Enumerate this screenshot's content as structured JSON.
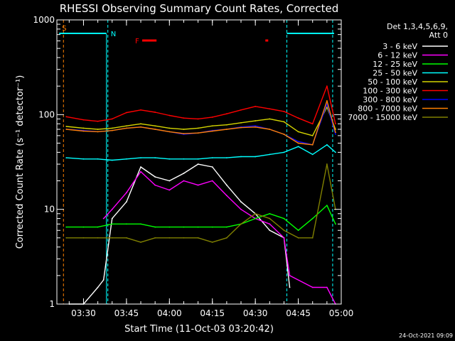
{
  "chart_data": {
    "type": "line",
    "title": "RHESSI Observing Summary Count Rates, Corrected",
    "xlabel": "Start Time (11-Oct-03 03:20:42)",
    "ylabel": "Corrected Count Rate (s⁻¹ detector⁻¹)",
    "y_scale": "log",
    "ylim": [
      1,
      1000
    ],
    "xlim": [
      "03:20:42",
      "05:00:00"
    ],
    "x_ticks": [
      "03:30",
      "03:45",
      "04:00",
      "04:15",
      "04:30",
      "04:45",
      "05:00"
    ],
    "y_ticks": [
      "1",
      "10",
      "100",
      "1000"
    ],
    "legend": {
      "placement": "right",
      "header": [
        "Det 1,3,4,5,6,9,",
        "Att 0"
      ]
    },
    "series": [
      {
        "name": "3 - 6 keV",
        "color": "#ffffff",
        "x": [
          "03:25",
          "03:30",
          "03:35",
          "03:37",
          "03:40",
          "03:45",
          "03:50",
          "03:55",
          "04:00",
          "04:05",
          "04:10",
          "04:15",
          "04:20",
          "04:25",
          "04:30",
          "04:35",
          "04:40",
          "04:42"
        ],
        "y": [
          1.0,
          1.0,
          1.5,
          1.8,
          8,
          12,
          28,
          22,
          20,
          24,
          30,
          28,
          18,
          12,
          9,
          6,
          5,
          1.5
        ]
      },
      {
        "name": "6 - 12 keV",
        "color": "#ff00ff",
        "x": [
          "03:37",
          "03:40",
          "03:45",
          "03:50",
          "03:55",
          "04:00",
          "04:05",
          "04:10",
          "04:15",
          "04:20",
          "04:25",
          "04:30",
          "04:35",
          "04:40",
          "04:42",
          "04:50",
          "04:55",
          "04:58"
        ],
        "y": [
          8,
          10,
          15,
          25,
          18,
          16,
          20,
          18,
          20,
          14,
          10,
          8,
          7,
          5,
          2,
          1.5,
          1.5,
          1
        ]
      },
      {
        "name": "12 - 25 keV",
        "color": "#00ff00",
        "x": [
          "03:24",
          "03:30",
          "03:35",
          "03:40",
          "03:45",
          "03:50",
          "03:55",
          "04:00",
          "04:05",
          "04:10",
          "04:15",
          "04:20",
          "04:25",
          "04:30",
          "04:35",
          "04:40",
          "04:45",
          "04:50",
          "04:55",
          "04:58"
        ],
        "y": [
          6.5,
          6.5,
          6.5,
          7,
          7,
          7,
          6.5,
          6.5,
          6.5,
          6.5,
          6.5,
          6.5,
          7,
          8,
          9,
          8,
          6,
          8,
          11,
          7
        ]
      },
      {
        "name": "25 - 50 keV",
        "color": "#00ffff",
        "x": [
          "03:24",
          "03:30",
          "03:35",
          "03:40",
          "03:45",
          "03:50",
          "03:55",
          "04:00",
          "04:05",
          "04:10",
          "04:15",
          "04:20",
          "04:25",
          "04:30",
          "04:35",
          "04:40",
          "04:45",
          "04:50",
          "04:55",
          "04:58"
        ],
        "y": [
          35,
          34,
          34,
          33,
          34,
          35,
          35,
          34,
          34,
          34,
          35,
          35,
          36,
          36,
          38,
          40,
          46,
          38,
          48,
          40
        ]
      },
      {
        "name": "50 - 100 keV",
        "color": "#d4d400",
        "x": [
          "03:24",
          "03:30",
          "03:35",
          "03:40",
          "03:45",
          "03:50",
          "03:55",
          "04:00",
          "04:05",
          "04:10",
          "04:15",
          "04:20",
          "04:25",
          "04:30",
          "04:35",
          "04:40",
          "04:45",
          "04:50",
          "04:55",
          "04:58"
        ],
        "y": [
          75,
          72,
          70,
          72,
          76,
          80,
          76,
          72,
          70,
          72,
          76,
          78,
          82,
          86,
          90,
          84,
          66,
          60,
          120,
          70
        ]
      },
      {
        "name": "100 - 300 keV",
        "color": "#ff0000",
        "x": [
          "03:24",
          "03:30",
          "03:35",
          "03:40",
          "03:45",
          "03:50",
          "03:55",
          "04:00",
          "04:05",
          "04:10",
          "04:15",
          "04:20",
          "04:25",
          "04:30",
          "04:35",
          "04:40",
          "04:45",
          "04:50",
          "04:55",
          "04:58"
        ],
        "y": [
          95,
          88,
          85,
          90,
          105,
          112,
          106,
          98,
          92,
          90,
          94,
          102,
          112,
          122,
          115,
          108,
          92,
          80,
          200,
          80
        ]
      },
      {
        "name": "300 - 800 keV",
        "color": "#0000ff",
        "x": [
          "03:24",
          "03:30",
          "03:35",
          "03:40",
          "03:45",
          "03:50",
          "03:55",
          "04:00",
          "04:05",
          "04:10",
          "04:15",
          "04:20",
          "04:25",
          "04:30",
          "04:35",
          "04:40",
          "04:45",
          "04:50",
          "04:55",
          "04:58"
        ],
        "y": [
          70,
          68,
          66,
          68,
          72,
          74,
          70,
          66,
          62,
          64,
          68,
          70,
          74,
          76,
          70,
          62,
          52,
          48,
          130,
          62
        ]
      },
      {
        "name": "800 - 7000 keV",
        "color": "#ff8000",
        "x": [
          "03:24",
          "03:30",
          "03:35",
          "03:40",
          "03:45",
          "03:50",
          "03:55",
          "04:00",
          "04:05",
          "04:10",
          "04:15",
          "04:20",
          "04:25",
          "04:30",
          "04:35",
          "04:40",
          "04:45",
          "04:50",
          "04:55",
          "04:58"
        ],
        "y": [
          70,
          67,
          66,
          68,
          72,
          74,
          70,
          66,
          63,
          64,
          67,
          70,
          73,
          74,
          70,
          62,
          50,
          48,
          140,
          65
        ]
      },
      {
        "name": "7000 - 15000 keV",
        "color": "#808000",
        "x": [
          "03:24",
          "03:30",
          "03:35",
          "03:40",
          "03:45",
          "03:50",
          "03:55",
          "04:00",
          "04:05",
          "04:10",
          "04:15",
          "04:20",
          "04:25",
          "04:30",
          "04:35",
          "04:40",
          "04:45",
          "04:50",
          "04:55",
          "04:58"
        ],
        "y": [
          5,
          5,
          5,
          5,
          5,
          4.5,
          5,
          5,
          5,
          5,
          4.5,
          5,
          7,
          9,
          8,
          6,
          5,
          5,
          30,
          10
        ]
      }
    ],
    "annotations": [
      "S",
      "N",
      "F"
    ],
    "timestamp": "24-Oct-2021 09:09"
  }
}
